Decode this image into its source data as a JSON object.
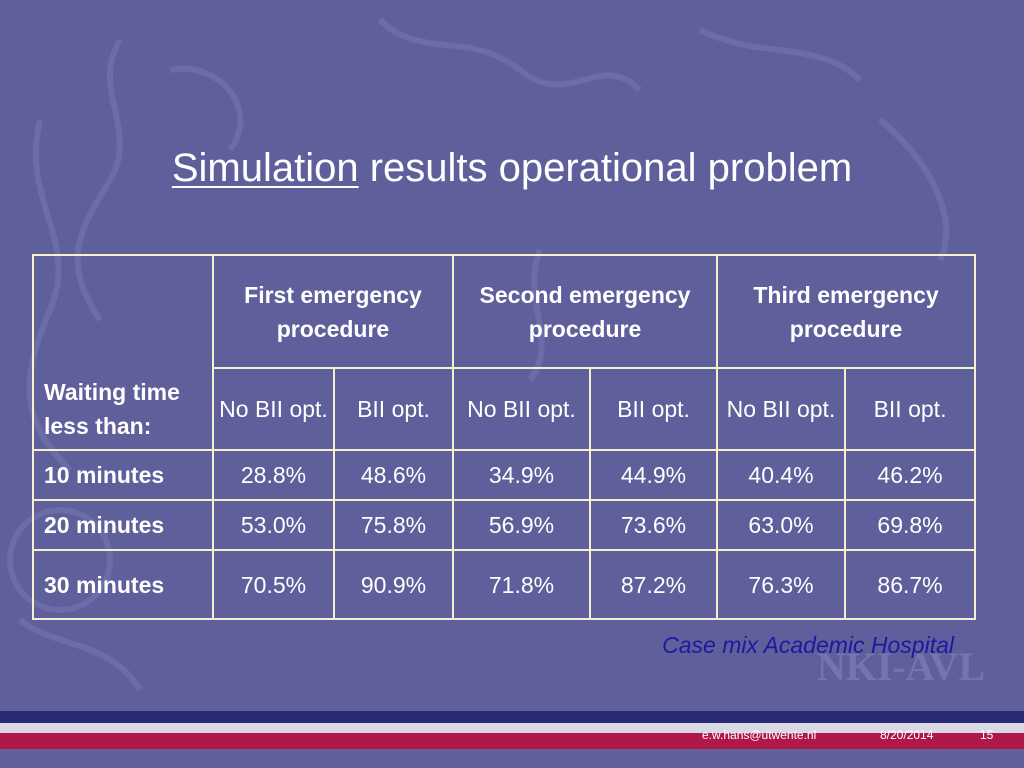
{
  "title": {
    "underlined": "Simulation",
    "rest": " results operational problem"
  },
  "table": {
    "corner": "Waiting time less than:",
    "groups": [
      "First emergency procedure",
      "Second emergency procedure",
      "Third emergency procedure"
    ],
    "subheaders": [
      "No BII opt.",
      "BII opt.",
      "No BII opt.",
      "BII opt.",
      "No BII opt.",
      "BII opt."
    ],
    "rows": [
      {
        "label": "10 minutes",
        "values": [
          "28.8%",
          "48.6%",
          "34.9%",
          "44.9%",
          "40.4%",
          "46.2%"
        ]
      },
      {
        "label": "20 minutes",
        "values": [
          "53.0%",
          "75.8%",
          "56.9%",
          "73.6%",
          "63.0%",
          "69.8%"
        ]
      },
      {
        "label": "30 minutes",
        "values": [
          "70.5%",
          "90.9%",
          "71.8%",
          "87.2%",
          "76.3%",
          "86.7%"
        ]
      }
    ]
  },
  "caption": "Case mix Academic Hospital",
  "logo_text": "NKI-AVL",
  "footer": {
    "email": "e.w.hans@utwente.nl",
    "date": "8/20/2014",
    "page": "15"
  },
  "colors": {
    "background": "#5f5f9c",
    "border": "#f5f0d0",
    "caption": "#1a1a9e",
    "red_band": "#b0184a"
  }
}
